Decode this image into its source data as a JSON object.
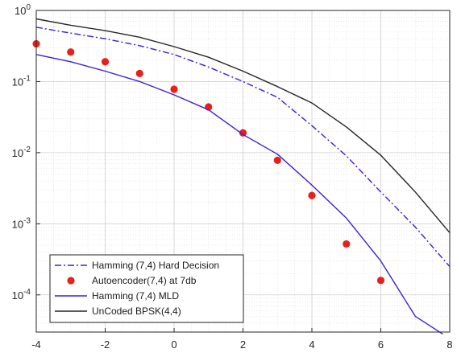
{
  "chart_data": {
    "type": "line",
    "title": "",
    "xlabel": "",
    "ylabel": "",
    "xlim": [
      -4,
      8
    ],
    "ylim": [
      3e-05,
      1
    ],
    "yscale": "log",
    "grid": true,
    "minor_grid": true,
    "legend_position": "bottom-left",
    "x_ticks": [
      {
        "value": -4,
        "label": "-4"
      },
      {
        "value": -2,
        "label": "-2"
      },
      {
        "value": 0,
        "label": "0"
      },
      {
        "value": 2,
        "label": "2"
      },
      {
        "value": 4,
        "label": "4"
      },
      {
        "value": 6,
        "label": "6"
      },
      {
        "value": 8,
        "label": "8"
      }
    ],
    "y_ticks": [
      {
        "value": 1,
        "base": "10",
        "exp": "0"
      },
      {
        "value": 0.1,
        "base": "10",
        "exp": "-1"
      },
      {
        "value": 0.01,
        "base": "10",
        "exp": "-2"
      },
      {
        "value": 0.001,
        "base": "10",
        "exp": "-3"
      },
      {
        "value": 0.0001,
        "base": "10",
        "exp": "-4"
      }
    ],
    "series": [
      {
        "name": "Hamming (7,4) Hard Decision",
        "style": "dashdot",
        "color": "#3d1fd6",
        "x": [
          -4,
          -3,
          -2,
          -1,
          0,
          1,
          2,
          3,
          4,
          5,
          6,
          7,
          8
        ],
        "y": [
          0.58,
          0.48,
          0.4,
          0.32,
          0.24,
          0.16,
          0.1,
          0.06,
          0.024,
          0.009,
          0.0028,
          0.0009,
          0.00025
        ]
      },
      {
        "name": "Autoencoder(7,4) at 7db",
        "style": "markers",
        "color": "#e8201a",
        "x": [
          -4,
          -3,
          -2,
          -1,
          0,
          1,
          2,
          3,
          4,
          5,
          6
        ],
        "y": [
          0.34,
          0.26,
          0.19,
          0.13,
          0.078,
          0.044,
          0.019,
          0.0078,
          0.0025,
          0.00052,
          0.00016
        ]
      },
      {
        "name": "Hamming (7,4) MLD",
        "style": "solid",
        "color": "#3d1fd6",
        "x": [
          -4,
          -3,
          -2,
          -1,
          0,
          1,
          2,
          3,
          4,
          5,
          6,
          7,
          7.8
        ],
        "y": [
          0.24,
          0.19,
          0.14,
          0.1,
          0.065,
          0.04,
          0.018,
          0.0095,
          0.0035,
          0.0012,
          0.0003,
          5e-05,
          2.8e-05
        ]
      },
      {
        "name": "UnCoded BPSK(4,4)",
        "style": "solid",
        "color": "#262626",
        "x": [
          -4,
          -3,
          -2,
          -1,
          0,
          1,
          2,
          3,
          4,
          5,
          6,
          7,
          8
        ],
        "y": [
          0.76,
          0.62,
          0.52,
          0.42,
          0.31,
          0.22,
          0.14,
          0.085,
          0.05,
          0.023,
          0.0092,
          0.0028,
          0.00075
        ]
      }
    ]
  }
}
